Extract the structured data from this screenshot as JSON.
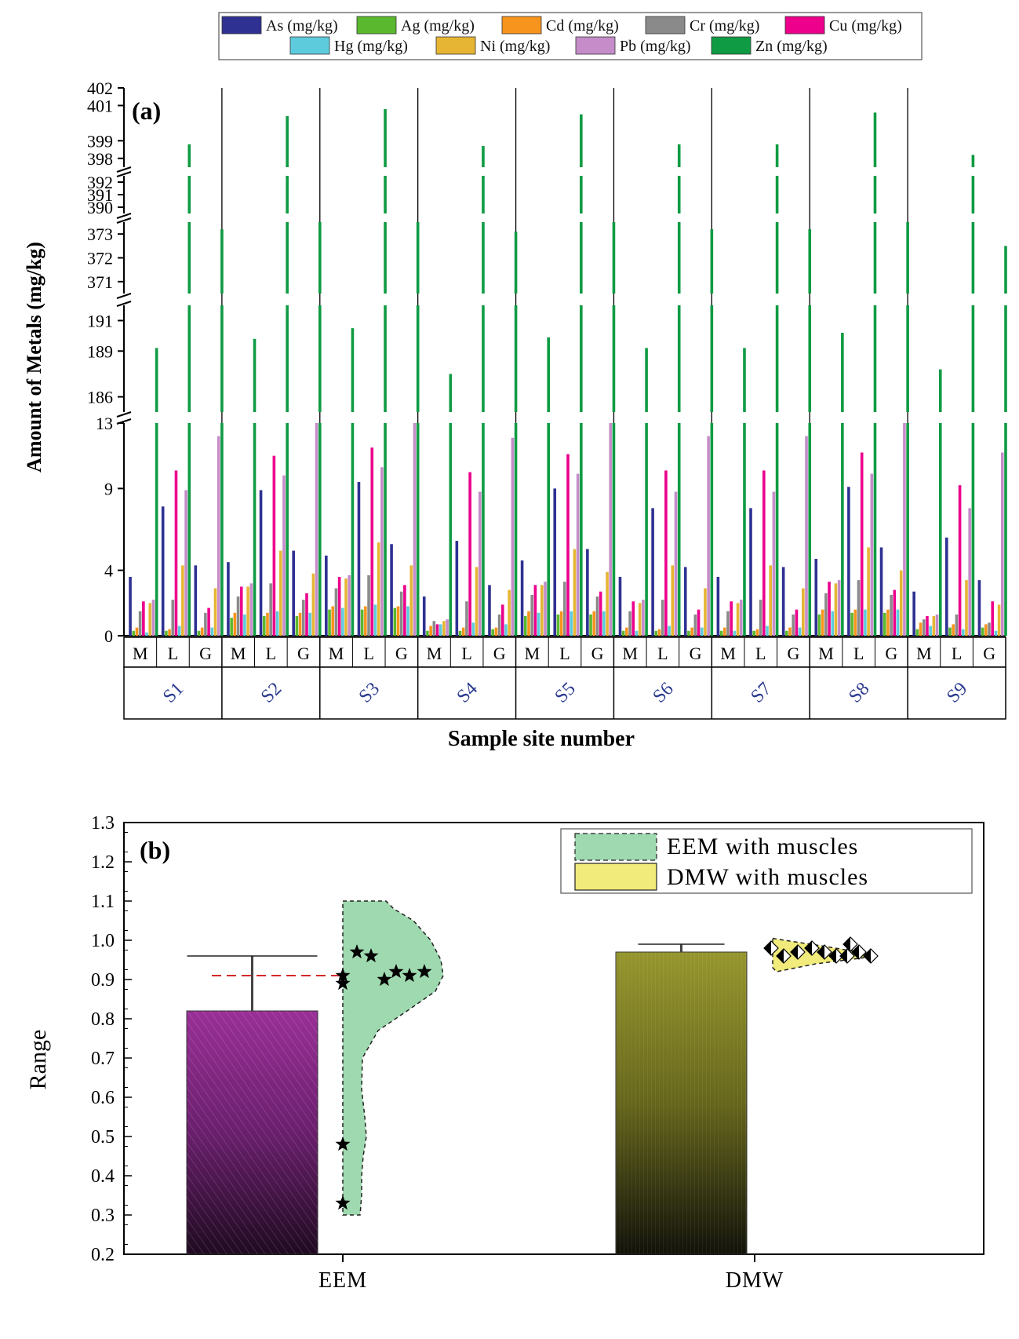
{
  "chart_data": [
    {
      "type": "bar",
      "panel_label": "(a)",
      "title": "",
      "xlabel": "Sample site number",
      "ylabel": "Amount of Metals (mg/kg)",
      "y_ticks": [
        "0",
        "4",
        "9",
        "13",
        "186",
        "189",
        "191",
        "371",
        "372",
        "373",
        "390",
        "391",
        "392",
        "398",
        "399",
        "401",
        "402"
      ],
      "y_segments": [
        {
          "range": [
            0,
            13
          ],
          "ticks": [
            0,
            4,
            9,
            13
          ],
          "labels": [
            "0",
            "4",
            "9",
            "13"
          ]
        },
        {
          "range": [
            185,
            192
          ],
          "ticks": [
            186,
            189,
            191
          ],
          "labels": [
            "186",
            "189",
            "191"
          ]
        },
        {
          "range": [
            370.5,
            373.5
          ],
          "ticks": [
            371,
            372,
            373
          ],
          "labels": [
            "371",
            "372",
            "373"
          ]
        },
        {
          "range": [
            389.5,
            392.5
          ],
          "ticks": [
            390,
            391,
            392
          ],
          "labels": [
            "390",
            "391",
            "392"
          ]
        },
        {
          "range": [
            397.5,
            402
          ],
          "ticks": [
            398,
            399,
            401,
            402
          ],
          "labels": [
            "398",
            "399",
            "401",
            "402"
          ]
        }
      ],
      "sites": [
        "S1",
        "S2",
        "S3",
        "S4",
        "S5",
        "S6",
        "S7",
        "S8",
        "S9"
      ],
      "categories": [
        "M",
        "L",
        "G"
      ],
      "legend": {
        "position": "top",
        "entries": [
          "As (mg/kg)",
          "Ag  (mg/kg)",
          "Cd  (mg/kg)",
          "Cr  (mg/kg)",
          "Cu  (mg/kg)",
          "Hg  (mg/kg)",
          "Ni  (mg/kg)",
          "Pb  (mg/kg)",
          "Zn  (mg/kg)"
        ]
      },
      "series": [
        {
          "name": "As",
          "color": "#2e3192",
          "values": [
            [
              3.6,
              7.9,
              4.3
            ],
            [
              4.5,
              8.9,
              5.2
            ],
            [
              4.9,
              9.4,
              5.6
            ],
            [
              2.4,
              5.8,
              3.1
            ],
            [
              4.6,
              9.0,
              5.3
            ],
            [
              3.6,
              7.8,
              4.2
            ],
            [
              3.6,
              7.8,
              4.2
            ],
            [
              4.7,
              9.1,
              5.4
            ],
            [
              2.7,
              6.0,
              3.4
            ]
          ]
        },
        {
          "name": "Ag",
          "color": "#5ab82e",
          "values": [
            [
              0.3,
              0.3,
              0.3
            ],
            [
              1.1,
              1.2,
              1.2
            ],
            [
              1.6,
              1.6,
              1.7
            ],
            [
              0.3,
              0.3,
              0.4
            ],
            [
              1.2,
              1.3,
              1.3
            ],
            [
              0.3,
              0.3,
              0.3
            ],
            [
              0.3,
              0.3,
              0.3
            ],
            [
              1.3,
              1.4,
              1.4
            ],
            [
              0.4,
              0.5,
              0.5
            ]
          ]
        },
        {
          "name": "Cd",
          "color": "#f7941d",
          "values": [
            [
              0.5,
              0.4,
              0.5
            ],
            [
              1.4,
              1.4,
              1.4
            ],
            [
              1.8,
              1.8,
              1.8
            ],
            [
              0.6,
              0.5,
              0.5
            ],
            [
              1.5,
              1.5,
              1.5
            ],
            [
              0.5,
              0.4,
              0.5
            ],
            [
              0.5,
              0.4,
              0.5
            ],
            [
              1.6,
              1.6,
              1.6
            ],
            [
              0.8,
              0.7,
              0.7
            ]
          ]
        },
        {
          "name": "Cr",
          "color": "#8a8a8a",
          "values": [
            [
              1.5,
              2.2,
              1.4
            ],
            [
              2.4,
              3.2,
              2.2
            ],
            [
              2.9,
              3.7,
              2.7
            ],
            [
              0.9,
              2.1,
              1.3
            ],
            [
              2.5,
              3.3,
              2.4
            ],
            [
              1.5,
              2.2,
              1.3
            ],
            [
              1.5,
              2.2,
              1.3
            ],
            [
              2.6,
              3.4,
              2.5
            ],
            [
              1.0,
              1.3,
              0.8
            ]
          ]
        },
        {
          "name": "Cu",
          "color": "#ec008c",
          "values": [
            [
              2.1,
              10.1,
              1.7
            ],
            [
              3.0,
              11.0,
              2.6
            ],
            [
              3.6,
              11.5,
              3.1
            ],
            [
              0.7,
              10.0,
              1.9
            ],
            [
              3.1,
              11.1,
              2.7
            ],
            [
              2.1,
              10.1,
              1.6
            ],
            [
              2.1,
              10.1,
              1.6
            ],
            [
              3.3,
              11.2,
              2.8
            ],
            [
              1.2,
              9.2,
              2.1
            ]
          ]
        },
        {
          "name": "Hg",
          "color": "#5ecbdd",
          "values": [
            [
              0.2,
              0.6,
              0.5
            ],
            [
              1.3,
              1.5,
              1.4
            ],
            [
              1.7,
              1.9,
              1.8
            ],
            [
              0.7,
              0.8,
              0.7
            ],
            [
              1.4,
              1.5,
              1.5
            ],
            [
              0.3,
              0.6,
              0.5
            ],
            [
              0.3,
              0.6,
              0.5
            ],
            [
              1.5,
              1.6,
              1.6
            ],
            [
              0.6,
              0.4,
              0.3
            ]
          ]
        },
        {
          "name": "Ni",
          "color": "#e6b533",
          "values": [
            [
              2.0,
              4.3,
              2.9
            ],
            [
              3.0,
              5.2,
              3.8
            ],
            [
              3.5,
              5.7,
              4.3
            ],
            [
              0.9,
              4.2,
              2.8
            ],
            [
              3.1,
              5.3,
              3.9
            ],
            [
              2.0,
              4.3,
              2.9
            ],
            [
              2.0,
              4.3,
              2.9
            ],
            [
              3.2,
              5.4,
              4.0
            ],
            [
              1.2,
              3.4,
              1.9
            ]
          ]
        },
        {
          "name": "Pb",
          "color": "#c58cc9",
          "values": [
            [
              2.2,
              8.9,
              12.2
            ],
            [
              3.2,
              9.8,
              13.0
            ],
            [
              3.7,
              10.3,
              13.4
            ],
            [
              1.0,
              8.8,
              12.1
            ],
            [
              3.3,
              9.9,
              13.1
            ],
            [
              2.2,
              8.8,
              12.2
            ],
            [
              2.2,
              8.8,
              12.2
            ],
            [
              3.4,
              9.9,
              13.1
            ],
            [
              1.3,
              7.8,
              11.2
            ]
          ]
        },
        {
          "name": "Zn",
          "color": "#0f9b43",
          "values": [
            [
              189.2,
              398.8,
              373.2
            ],
            [
              189.8,
              400.4,
              373.7
            ],
            [
              190.5,
              400.8,
              373.7
            ],
            [
              187.5,
              398.7,
              373.1
            ],
            [
              189.9,
              400.5,
              373.7
            ],
            [
              189.2,
              398.8,
              373.2
            ],
            [
              189.2,
              398.8,
              373.2
            ],
            [
              190.2,
              400.6,
              373.7
            ],
            [
              187.8,
              398.2,
              372.5
            ]
          ]
        }
      ]
    },
    {
      "type": "bar",
      "panel_label": "(b)",
      "title": "",
      "xlabel": "",
      "ylabel": "Range",
      "ylim": [
        0.2,
        1.3
      ],
      "y_ticks": [
        "0.2",
        "0.3",
        "0.4",
        "0.5",
        "0.6",
        "0.7",
        "0.8",
        "0.9",
        "1.0",
        "1.1",
        "1.2",
        "1.3"
      ],
      "categories": [
        "EEM",
        "DMW"
      ],
      "values": [
        0.82,
        0.97
      ],
      "error_upper": [
        0.96,
        0.99
      ],
      "reference_line": 0.91,
      "legend": {
        "position": "top-right",
        "entries": [
          "EEM with muscles",
          "DMW with muscles"
        ]
      },
      "distributions": [
        {
          "name": "EEM with muscles",
          "points": [
            0.97,
            0.96,
            0.91,
            0.89,
            0.9,
            0.92,
            0.91,
            0.92,
            0.48,
            0.33
          ],
          "y_range": [
            0.3,
            1.1
          ]
        },
        {
          "name": "DMW with muscles",
          "points": [
            0.98,
            0.96,
            0.97,
            0.98,
            0.97,
            0.96,
            0.96,
            0.99,
            0.97,
            0.96
          ],
          "y_range": [
            0.92,
            1.01
          ]
        }
      ],
      "colors": {
        "eem_bar": "#8b2e8a",
        "dmw_bar": "#8a8a2a",
        "eem_violin": "#9fd9b0",
        "dmw_violin": "#f0eb7a",
        "ref_line": "#d62728"
      }
    }
  ]
}
